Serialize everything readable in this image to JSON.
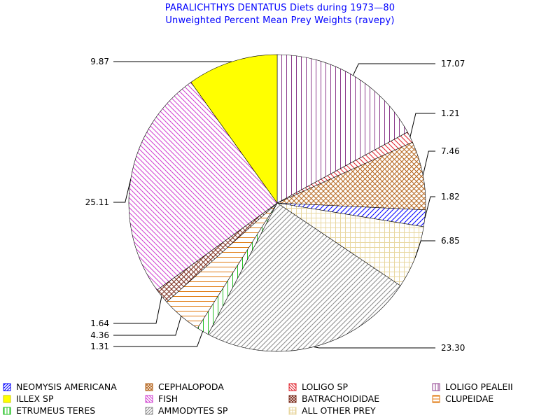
{
  "chart_data": {
    "type": "pie",
    "title": "PARALICHTHYS DENTATUS Diets during 1973—80",
    "subtitle": "Unweighted Percent Mean Prey Weights (ravepy)",
    "slices": [
      {
        "name": "LOLIGO PEALEII",
        "value": 17.07,
        "label": "17.07",
        "color": "#8b3a8b",
        "pattern": "vertical"
      },
      {
        "name": "LOLIGO SP",
        "value": 1.21,
        "label": "1.21",
        "color": "#e0202a",
        "pattern": "diag-down"
      },
      {
        "name": "CEPHALOPODA",
        "value": 7.46,
        "label": "7.46",
        "color": "#b5651d",
        "pattern": "crosshatch"
      },
      {
        "name": "NEOMYSIS AMERICANA",
        "value": 1.82,
        "label": "1.82",
        "color": "#0000ff",
        "pattern": "diag-up"
      },
      {
        "name": "ALL OTHER PREY",
        "value": 6.85,
        "label": "6.85",
        "color": "#e8d7a0",
        "pattern": "grid"
      },
      {
        "name": "AMMODYTES SP",
        "value": 23.3,
        "label": "23.30",
        "color": "#8c8c8c",
        "pattern": "diag-up"
      },
      {
        "name": "ETRUMEUS TERES",
        "value": 1.31,
        "label": "1.31",
        "color": "#22c022",
        "pattern": "vertical"
      },
      {
        "name": "CLUPEIDAE",
        "value": 4.36,
        "label": "4.36",
        "color": "#e07a10",
        "pattern": "horizontal"
      },
      {
        "name": "BATRACHOIDIDAE",
        "value": 1.64,
        "label": "1.64",
        "color": "#7a2a1a",
        "pattern": "crosshatch-diag"
      },
      {
        "name": "FISH",
        "value": 25.11,
        "label": "25.11",
        "color": "#d040d0",
        "pattern": "diag-down"
      },
      {
        "name": "ILLEX SP",
        "value": 9.87,
        "label": "9.87",
        "color": "#ffff00",
        "pattern": "solid"
      }
    ],
    "legend": [
      {
        "name": "NEOMYSIS AMERICANA",
        "color": "#0000ff",
        "pattern": "diag-up"
      },
      {
        "name": "CEPHALOPODA",
        "color": "#b5651d",
        "pattern": "crosshatch"
      },
      {
        "name": "LOLIGO SP",
        "color": "#e0202a",
        "pattern": "diag-down"
      },
      {
        "name": "LOLIGO PEALEII",
        "color": "#8b3a8b",
        "pattern": "vertical"
      },
      {
        "name": "ILLEX SP",
        "color": "#ffff00",
        "pattern": "solid"
      },
      {
        "name": "FISH",
        "color": "#d040d0",
        "pattern": "diag-down"
      },
      {
        "name": "BATRACHOIDIDAE",
        "color": "#7a2a1a",
        "pattern": "crosshatch-diag"
      },
      {
        "name": "CLUPEIDAE",
        "color": "#e07a10",
        "pattern": "horizontal"
      },
      {
        "name": "ETRUMEUS TERES",
        "color": "#22c022",
        "pattern": "vertical"
      },
      {
        "name": "AMMODYTES SP",
        "color": "#8c8c8c",
        "pattern": "diag-up"
      },
      {
        "name": "ALL OTHER PREY",
        "color": "#e8d7a0",
        "pattern": "grid"
      }
    ],
    "legend_placement": "bottom",
    "start_angle": "12 o'clock",
    "direction": "clockwise"
  }
}
